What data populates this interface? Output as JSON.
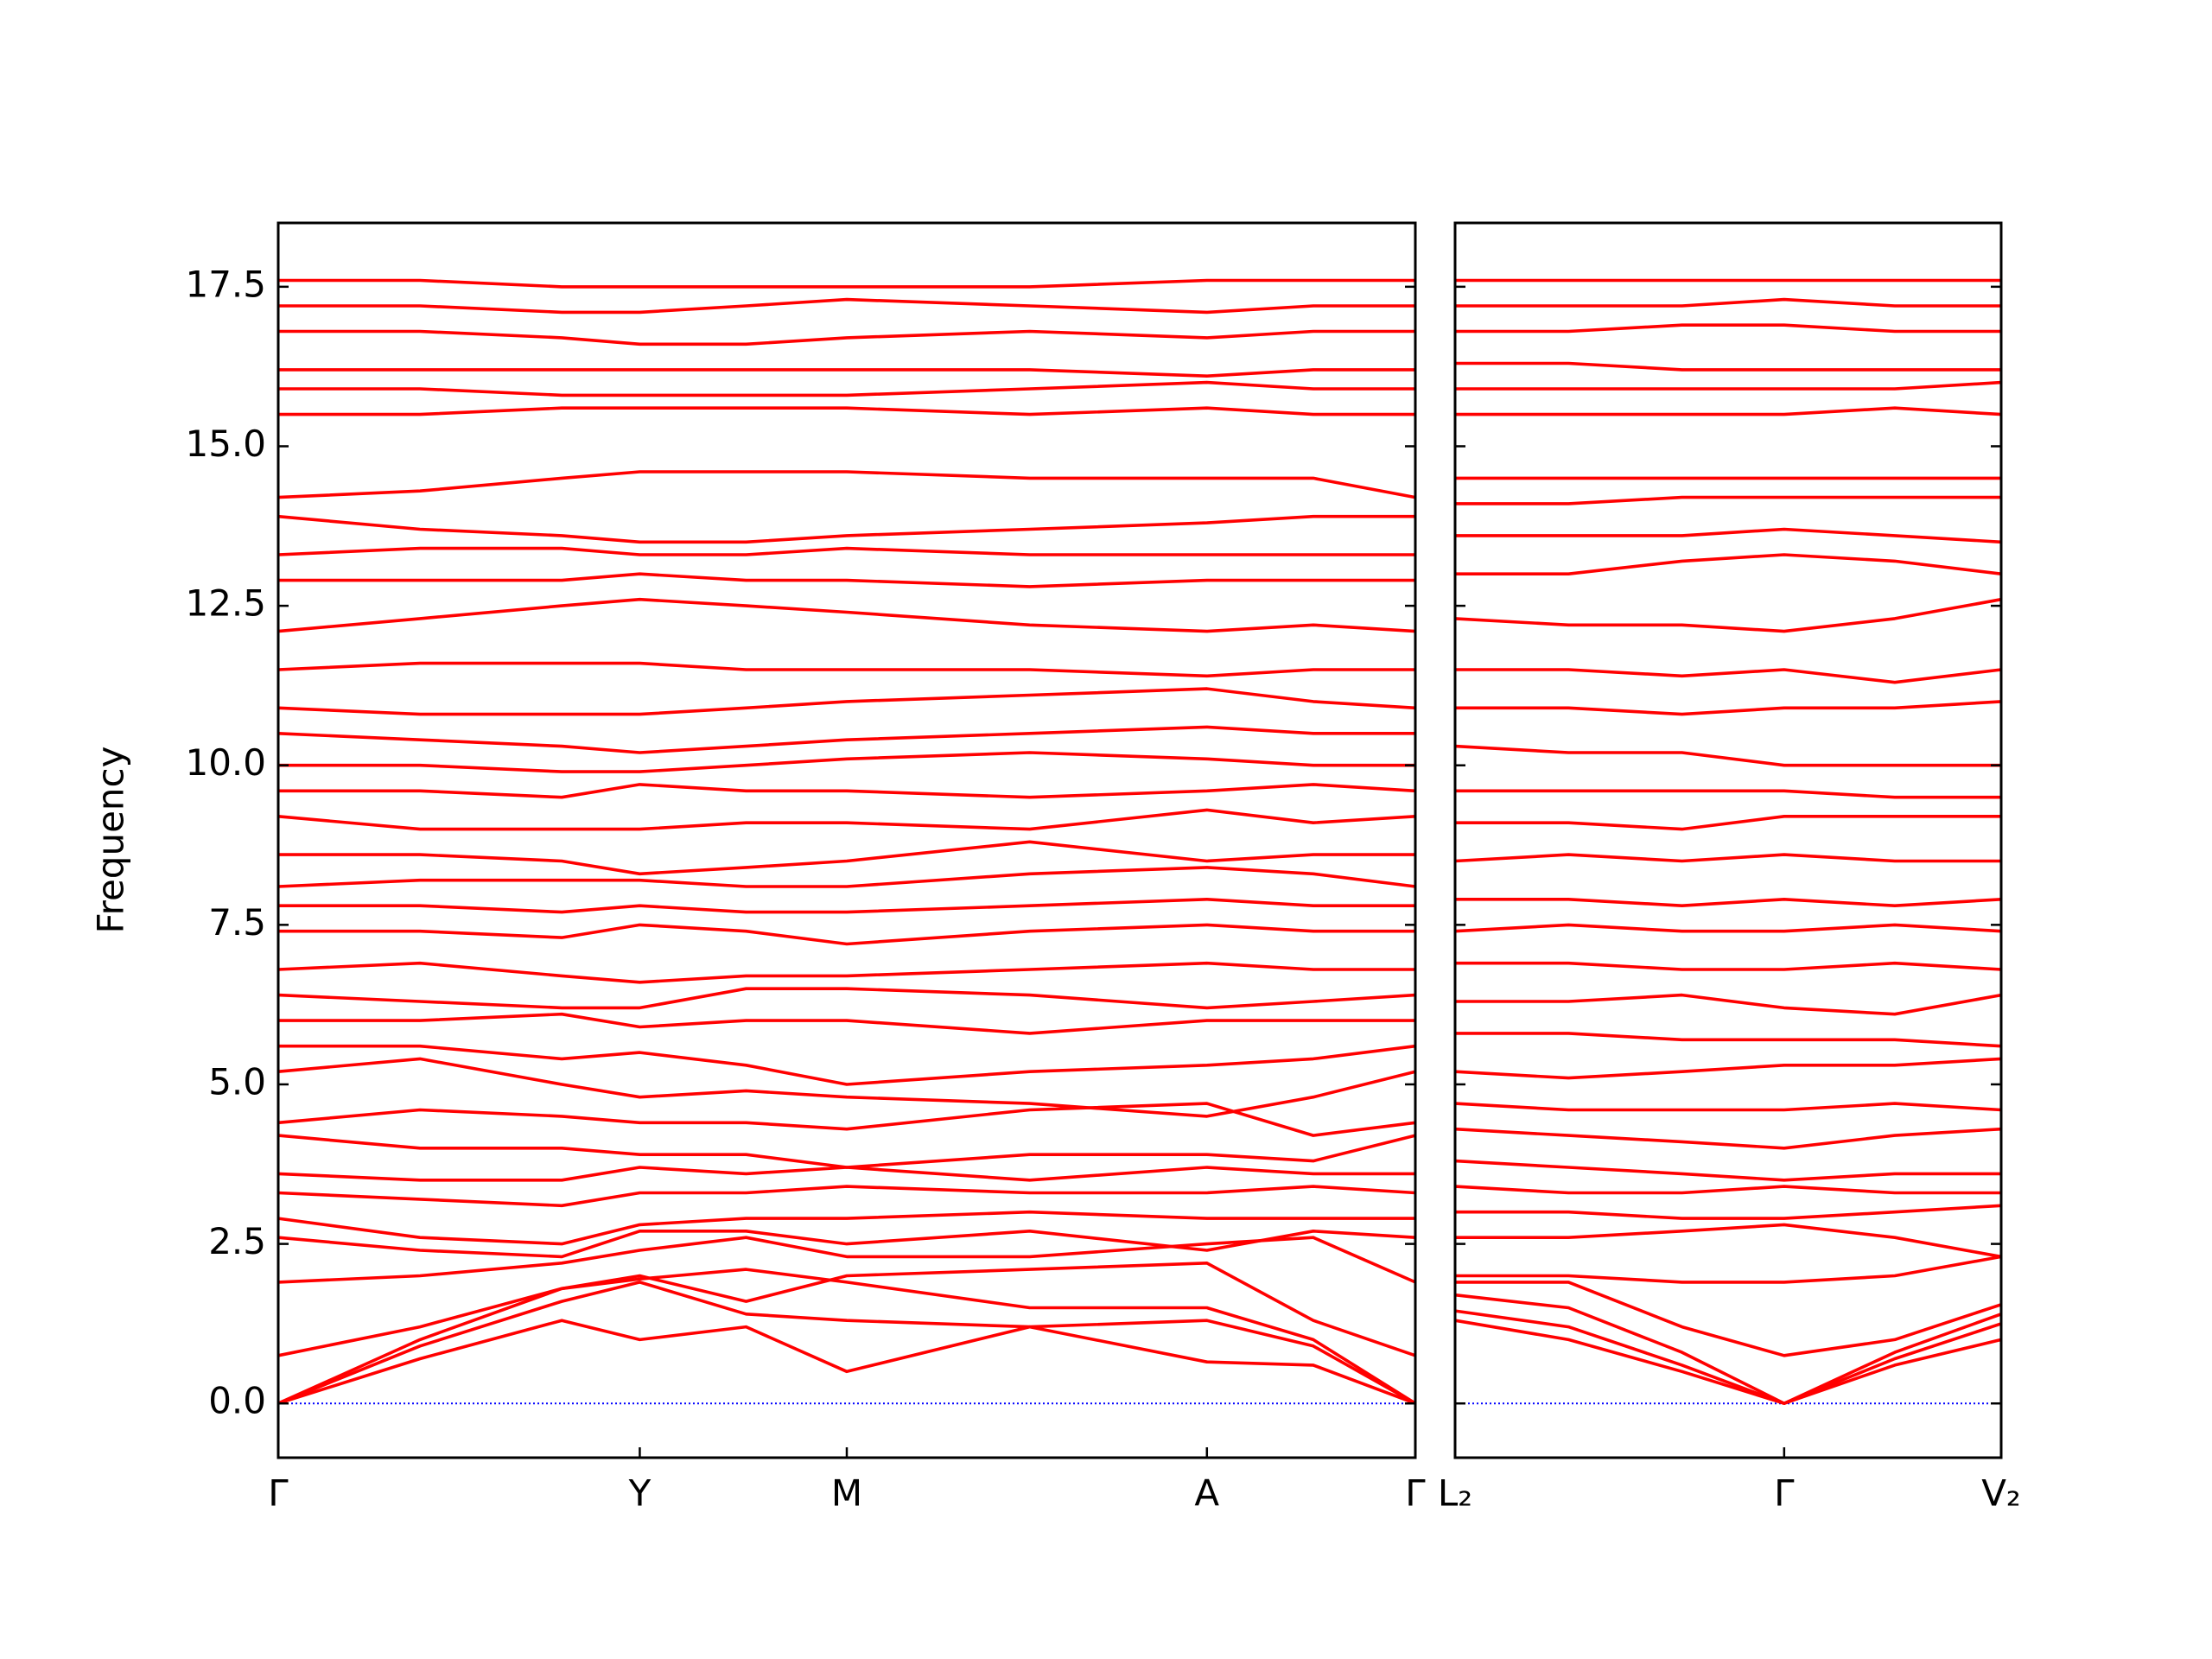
{
  "chart_data": [
    {
      "type": "line",
      "ylabel": "Frequency",
      "color": "#ff0000",
      "hline": 0,
      "hline_color": "#0000ff",
      "xlim": [
        0,
        8.02
      ],
      "ylim": [
        -0.85,
        18.5
      ],
      "xticks": [
        {
          "value": 0,
          "label": "Γ"
        },
        {
          "value": 2.55,
          "label": "Y"
        },
        {
          "value": 4.01,
          "label": "M"
        },
        {
          "value": 6.55,
          "label": "A"
        },
        {
          "value": 8.02,
          "label": "Γ"
        }
      ],
      "yticks": [
        {
          "value": 0,
          "label": "0.0"
        },
        2.5,
        {
          "value": 5,
          "label": "5.0"
        },
        7.5,
        {
          "value": 10,
          "label": "10.0"
        },
        12.5,
        {
          "value": 15,
          "label": "15.0"
        },
        17.5
      ],
      "x": [
        0,
        1,
        2,
        2.55,
        3.3,
        4.01,
        5.3,
        6.55,
        7.3,
        8.02
      ],
      "series": [
        {
          "values": [
            0,
            0.7,
            1.3,
            1.0,
            1.2,
            0.5,
            1.2,
            0.65,
            0.6,
            0
          ]
        },
        {
          "values": [
            0,
            0.9,
            1.6,
            1.9,
            1.4,
            1.3,
            1.2,
            1.3,
            0.9,
            0
          ]
        },
        {
          "values": [
            0,
            1.0,
            1.8,
            1.95,
            2.1,
            1.9,
            1.5,
            1.5,
            1.0,
            0
          ]
        },
        {
          "values": [
            0.75,
            1.2,
            1.8,
            2.0,
            1.6,
            2.0,
            2.1,
            2.2,
            1.3,
            0.75
          ]
        },
        {
          "values": [
            1.9,
            2.0,
            2.2,
            2.4,
            2.6,
            2.3,
            2.3,
            2.5,
            2.6,
            1.9
          ]
        },
        {
          "values": [
            2.6,
            2.4,
            2.3,
            2.7,
            2.7,
            2.5,
            2.7,
            2.4,
            2.7,
            2.6
          ]
        },
        {
          "values": [
            2.9,
            2.6,
            2.5,
            2.8,
            2.9,
            2.9,
            3.0,
            2.9,
            2.9,
            2.9
          ]
        },
        {
          "values": [
            3.3,
            3.2,
            3.1,
            3.3,
            3.3,
            3.4,
            3.3,
            3.3,
            3.4,
            3.3
          ]
        },
        {
          "values": [
            3.6,
            3.5,
            3.5,
            3.7,
            3.6,
            3.7,
            3.5,
            3.7,
            3.6,
            3.6
          ]
        },
        {
          "values": [
            4.2,
            4.0,
            4.0,
            3.9,
            3.9,
            3.7,
            3.9,
            3.9,
            3.8,
            4.2
          ]
        },
        {
          "values": [
            4.4,
            4.6,
            4.5,
            4.4,
            4.4,
            4.3,
            4.6,
            4.7,
            4.2,
            4.4
          ]
        },
        {
          "values": [
            5.2,
            5.4,
            5.0,
            4.8,
            4.9,
            4.8,
            4.7,
            4.5,
            4.8,
            5.2
          ]
        },
        {
          "values": [
            5.6,
            5.6,
            5.4,
            5.5,
            5.3,
            5.0,
            5.2,
            5.3,
            5.4,
            5.6
          ]
        },
        {
          "values": [
            6.0,
            6.0,
            6.1,
            5.9,
            6.0,
            6.0,
            5.8,
            6.0,
            6.0,
            6.0
          ]
        },
        {
          "values": [
            6.4,
            6.3,
            6.2,
            6.2,
            6.5,
            6.5,
            6.4,
            6.2,
            6.3,
            6.4
          ]
        },
        {
          "values": [
            6.8,
            6.9,
            6.7,
            6.6,
            6.7,
            6.7,
            6.8,
            6.9,
            6.8,
            6.8
          ]
        },
        {
          "values": [
            7.4,
            7.4,
            7.3,
            7.5,
            7.4,
            7.2,
            7.4,
            7.5,
            7.4,
            7.4
          ]
        },
        {
          "values": [
            7.8,
            7.8,
            7.7,
            7.8,
            7.7,
            7.7,
            7.8,
            7.9,
            7.8,
            7.8
          ]
        },
        {
          "values": [
            8.1,
            8.2,
            8.2,
            8.2,
            8.1,
            8.1,
            8.3,
            8.4,
            8.3,
            8.1
          ]
        },
        {
          "values": [
            8.6,
            8.6,
            8.5,
            8.3,
            8.4,
            8.5,
            8.8,
            8.5,
            8.6,
            8.6
          ]
        },
        {
          "values": [
            9.2,
            9.0,
            9.0,
            9.0,
            9.1,
            9.1,
            9.0,
            9.3,
            9.1,
            9.2
          ]
        },
        {
          "values": [
            9.6,
            9.6,
            9.5,
            9.7,
            9.6,
            9.6,
            9.5,
            9.6,
            9.7,
            9.6
          ]
        },
        {
          "values": [
            10.0,
            10.0,
            9.9,
            9.9,
            10.0,
            10.1,
            10.2,
            10.1,
            10.0,
            10.0
          ]
        },
        {
          "values": [
            10.5,
            10.4,
            10.3,
            10.2,
            10.3,
            10.4,
            10.5,
            10.6,
            10.5,
            10.5
          ]
        },
        {
          "values": [
            10.9,
            10.8,
            10.8,
            10.8,
            10.9,
            11.0,
            11.1,
            11.2,
            11.0,
            10.9
          ]
        },
        {
          "values": [
            11.5,
            11.6,
            11.6,
            11.6,
            11.5,
            11.5,
            11.5,
            11.4,
            11.5,
            11.5
          ]
        },
        {
          "values": [
            12.1,
            12.3,
            12.5,
            12.6,
            12.5,
            12.4,
            12.2,
            12.1,
            12.2,
            12.1
          ]
        },
        {
          "values": [
            12.9,
            12.9,
            12.9,
            13.0,
            12.9,
            12.9,
            12.8,
            12.9,
            12.9,
            12.9
          ]
        },
        {
          "values": [
            13.3,
            13.4,
            13.4,
            13.3,
            13.3,
            13.4,
            13.3,
            13.3,
            13.3,
            13.3
          ]
        },
        {
          "values": [
            13.9,
            13.7,
            13.6,
            13.5,
            13.5,
            13.6,
            13.7,
            13.8,
            13.9,
            13.9
          ]
        },
        {
          "values": [
            14.2,
            14.3,
            14.5,
            14.6,
            14.6,
            14.6,
            14.5,
            14.5,
            14.5,
            14.2
          ]
        },
        {
          "values": [
            15.5,
            15.5,
            15.6,
            15.6,
            15.6,
            15.6,
            15.5,
            15.6,
            15.5,
            15.5
          ]
        },
        {
          "values": [
            15.9,
            15.9,
            15.8,
            15.8,
            15.8,
            15.8,
            15.9,
            16.0,
            15.9,
            15.9
          ]
        },
        {
          "values": [
            16.2,
            16.2,
            16.2,
            16.2,
            16.2,
            16.2,
            16.2,
            16.1,
            16.2,
            16.2
          ]
        },
        {
          "values": [
            16.8,
            16.8,
            16.7,
            16.6,
            16.6,
            16.7,
            16.8,
            16.7,
            16.8,
            16.8
          ]
        },
        {
          "values": [
            17.2,
            17.2,
            17.1,
            17.1,
            17.2,
            17.3,
            17.2,
            17.1,
            17.2,
            17.2
          ]
        },
        {
          "values": [
            17.6,
            17.6,
            17.5,
            17.5,
            17.5,
            17.5,
            17.5,
            17.6,
            17.6,
            17.6
          ]
        }
      ]
    },
    {
      "type": "line",
      "color": "#ff0000",
      "hline": 0,
      "hline_color": "#0000ff",
      "xlim": [
        0,
        3.85
      ],
      "ylim": [
        -0.85,
        18.5
      ],
      "xticks": [
        {
          "value": 0,
          "label": "L₂"
        },
        {
          "value": 2.32,
          "label": "Γ"
        },
        {
          "value": 3.85,
          "label": "V₂"
        }
      ],
      "x": [
        0,
        0.8,
        1.6,
        2.32,
        3.1,
        3.85
      ],
      "series": [
        {
          "values": [
            1.3,
            1.0,
            0.5,
            0,
            0.6,
            1.0
          ]
        },
        {
          "values": [
            1.45,
            1.2,
            0.6,
            0,
            0.7,
            1.25
          ]
        },
        {
          "values": [
            1.7,
            1.5,
            0.8,
            0,
            0.8,
            1.4
          ]
        },
        {
          "values": [
            1.9,
            1.9,
            1.2,
            0.75,
            1.0,
            1.55
          ]
        },
        {
          "values": [
            2.0,
            2.0,
            1.9,
            1.9,
            2.0,
            2.3
          ]
        },
        {
          "values": [
            2.6,
            2.6,
            2.7,
            2.8,
            2.6,
            2.3
          ]
        },
        {
          "values": [
            3.0,
            3.0,
            2.9,
            2.9,
            3.0,
            3.1
          ]
        },
        {
          "values": [
            3.4,
            3.3,
            3.3,
            3.4,
            3.3,
            3.3
          ]
        },
        {
          "values": [
            3.8,
            3.7,
            3.6,
            3.5,
            3.6,
            3.6
          ]
        },
        {
          "values": [
            4.3,
            4.2,
            4.1,
            4.0,
            4.2,
            4.3
          ]
        },
        {
          "values": [
            4.7,
            4.6,
            4.6,
            4.6,
            4.7,
            4.6
          ]
        },
        {
          "values": [
            5.2,
            5.1,
            5.2,
            5.3,
            5.3,
            5.4
          ]
        },
        {
          "values": [
            5.8,
            5.8,
            5.7,
            5.7,
            5.7,
            5.6
          ]
        },
        {
          "values": [
            6.3,
            6.3,
            6.4,
            6.2,
            6.1,
            6.4
          ]
        },
        {
          "values": [
            6.9,
            6.9,
            6.8,
            6.8,
            6.9,
            6.8
          ]
        },
        {
          "values": [
            7.4,
            7.5,
            7.4,
            7.4,
            7.5,
            7.4
          ]
        },
        {
          "values": [
            7.9,
            7.9,
            7.8,
            7.9,
            7.8,
            7.9
          ]
        },
        {
          "values": [
            8.5,
            8.6,
            8.5,
            8.6,
            8.5,
            8.5
          ]
        },
        {
          "values": [
            9.1,
            9.1,
            9.0,
            9.2,
            9.2,
            9.2
          ]
        },
        {
          "values": [
            9.6,
            9.6,
            9.6,
            9.6,
            9.5,
            9.5
          ]
        },
        {
          "values": [
            10.3,
            10.2,
            10.2,
            10.0,
            10.0,
            10.0
          ]
        },
        {
          "values": [
            10.9,
            10.9,
            10.8,
            10.9,
            10.9,
            11.0
          ]
        },
        {
          "values": [
            11.5,
            11.5,
            11.4,
            11.5,
            11.3,
            11.5
          ]
        },
        {
          "values": [
            12.3,
            12.2,
            12.2,
            12.1,
            12.3,
            12.6
          ]
        },
        {
          "values": [
            13.0,
            13.0,
            13.2,
            13.3,
            13.2,
            13.0
          ]
        },
        {
          "values": [
            13.6,
            13.6,
            13.6,
            13.7,
            13.6,
            13.5
          ]
        },
        {
          "values": [
            14.1,
            14.1,
            14.2,
            14.2,
            14.2,
            14.2
          ]
        },
        {
          "values": [
            14.5,
            14.5,
            14.5,
            14.5,
            14.5,
            14.5
          ]
        },
        {
          "values": [
            15.5,
            15.5,
            15.5,
            15.5,
            15.6,
            15.5
          ]
        },
        {
          "values": [
            15.9,
            15.9,
            15.9,
            15.9,
            15.9,
            16.0
          ]
        },
        {
          "values": [
            16.3,
            16.3,
            16.2,
            16.2,
            16.2,
            16.2
          ]
        },
        {
          "values": [
            16.8,
            16.8,
            16.9,
            16.9,
            16.8,
            16.8
          ]
        },
        {
          "values": [
            17.2,
            17.2,
            17.2,
            17.3,
            17.2,
            17.2
          ]
        },
        {
          "values": [
            17.6,
            17.6,
            17.6,
            17.6,
            17.6,
            17.6
          ]
        }
      ]
    }
  ]
}
